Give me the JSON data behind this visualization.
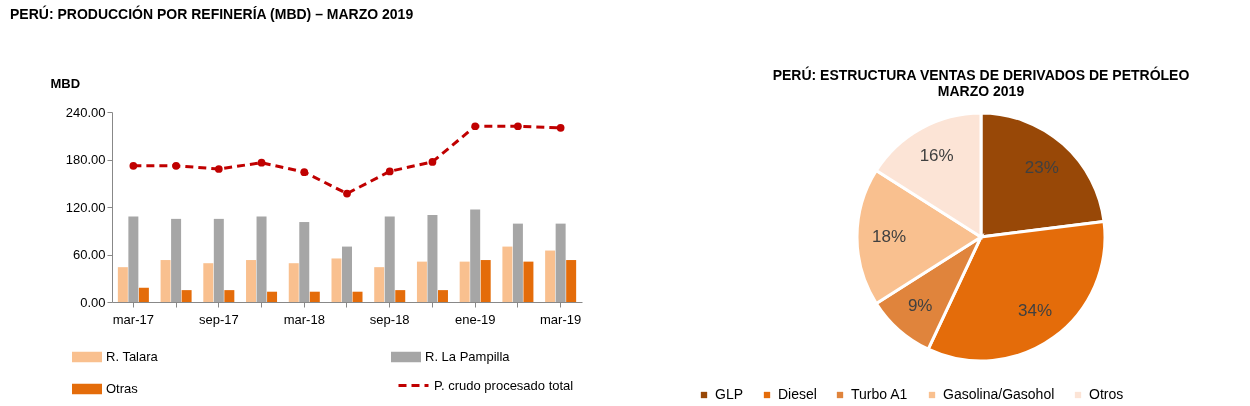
{
  "chart_data": [
    {
      "type": "bar",
      "title": "PERÚ: PRODUCCIÓN POR REFINERÍA (MBD) – MARZO 2019",
      "ylabel": "MBD",
      "categories": [
        "mar-17",
        null,
        "sep-17",
        null,
        "mar-18",
        null,
        "sep-18",
        null,
        "ene-19",
        null,
        "mar-19"
      ],
      "series": [
        {
          "name": "R. Talara",
          "color": "#f9c08f",
          "values": [
            44,
            53,
            49,
            53,
            49,
            55,
            44,
            51,
            51,
            70,
            65
          ]
        },
        {
          "name": "R. La Pampilla",
          "color": "#a6a6a6",
          "values": [
            108,
            105,
            105,
            108,
            101,
            70,
            108,
            110,
            117,
            99,
            99
          ]
        },
        {
          "name": "Otras",
          "color": "#e46c0a",
          "values": [
            18,
            15,
            15,
            13,
            13,
            13,
            15,
            15,
            53,
            51,
            53
          ]
        },
        {
          "name": "P. crudo procesado total",
          "type": "line",
          "color": "#c00000",
          "line_style": "dashed",
          "marker": "circle",
          "values": [
            172,
            172,
            168,
            176,
            164,
            137,
            165,
            177,
            222,
            222,
            220
          ]
        }
      ],
      "ylim": [
        0,
        240
      ],
      "yticks": [
        {
          "value": 0,
          "label": "0.00"
        },
        {
          "value": 60,
          "label": "60.00"
        },
        {
          "value": 120,
          "label": "120.00"
        },
        {
          "value": 180,
          "label": "180.00"
        },
        {
          "value": 240,
          "label": "240.00"
        }
      ],
      "grid": false,
      "legend": "bottom"
    },
    {
      "type": "pie",
      "title": "PERÚ: ESTRUCTURA VENTAS DE DERIVADOS DE PETRÓLEO\nMARZO 2019",
      "categories": [
        "GLP",
        "Diesel",
        "Turbo A1",
        "Gasolina/Gasohol",
        "Otros"
      ],
      "values": [
        23,
        34,
        9,
        18,
        16
      ],
      "colors": [
        "#984807",
        "#e46c0a",
        "#e0843c",
        "#f9c08f",
        "#fce4d6"
      ],
      "value_labels": [
        "23%",
        "34%",
        "9%",
        "18%",
        "16%"
      ],
      "legend": "bottom"
    }
  ]
}
